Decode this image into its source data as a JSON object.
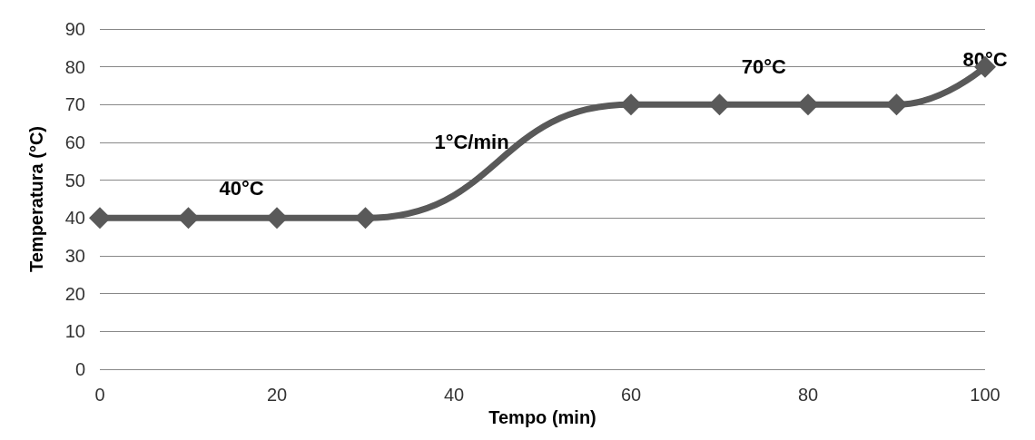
{
  "chart_data": {
    "type": "line",
    "xlabel": "Tempo (min)",
    "ylabel": "Temperatura (°C)",
    "x": [
      0,
      10,
      20,
      30,
      60,
      70,
      80,
      90,
      100
    ],
    "series": [
      {
        "color": "#595959",
        "values": [
          40,
          40,
          40,
          40,
          70,
          70,
          70,
          70,
          80
        ]
      }
    ],
    "xlim": [
      0,
      100
    ],
    "xticks": [
      0,
      20,
      40,
      60,
      80,
      100
    ],
    "ylim": [
      0,
      90
    ],
    "yticks": [
      0,
      10,
      20,
      30,
      40,
      50,
      60,
      70,
      80,
      90
    ],
    "grid": "y",
    "marker": "diamond",
    "line_style": "solid",
    "annotations": [
      "40°C",
      "1°C/min",
      "70°C",
      {
        "text": "80°C",
        "x": 100,
        "y": 82
      }
    ]
  }
}
